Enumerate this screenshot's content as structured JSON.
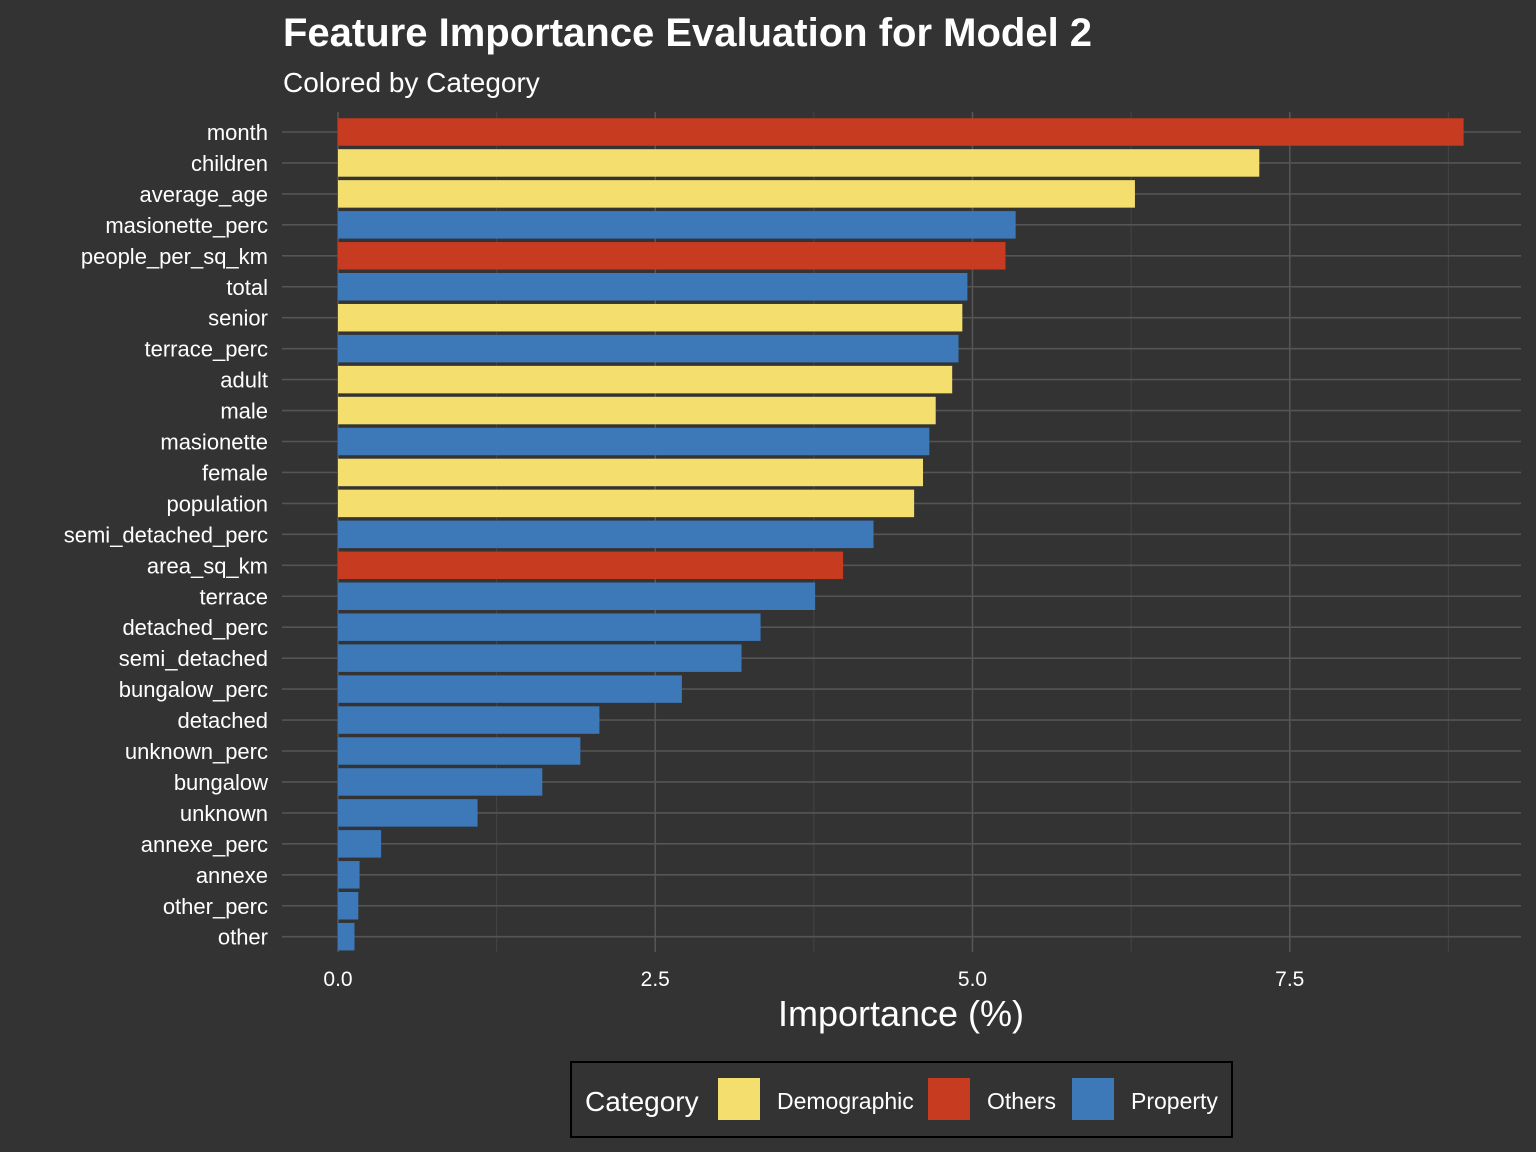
{
  "colors": {
    "background": "#333333",
    "grid_major": "#555555",
    "grid_minor": "#444444",
    "text": "#ffffff",
    "Demographic": "#F4DF6E",
    "Others": "#C73B20",
    "Property": "#3D78B8"
  },
  "chart_data": {
    "type": "bar",
    "orientation": "horizontal",
    "title": "Feature Importance Evaluation for Model 2",
    "subtitle": "Colored by Category",
    "xlabel": "Importance (%)",
    "ylabel": "",
    "xlim": [
      0,
      9
    ],
    "xticks": [
      "0.0",
      "2.5",
      "5.0",
      "7.5"
    ],
    "xtick_values": [
      0,
      2.5,
      5.0,
      7.5
    ],
    "grid": true,
    "legend_position": "bottom",
    "legend_title": "Category",
    "legend": [
      "Demographic",
      "Others",
      "Property"
    ],
    "categories": [
      "month",
      "children",
      "average_age",
      "masionette_perc",
      "people_per_sq_km",
      "total",
      "senior",
      "terrace_perc",
      "adult",
      "male",
      "masionette",
      "female",
      "population",
      "semi_detached_perc",
      "area_sq_km",
      "terrace",
      "detached_perc",
      "semi_detached",
      "bungalow_perc",
      "detached",
      "unknown_perc",
      "bungalow",
      "unknown",
      "annexe_perc",
      "annexe",
      "other_perc",
      "other"
    ],
    "values": [
      8.87,
      7.26,
      6.28,
      5.34,
      5.26,
      4.96,
      4.92,
      4.89,
      4.84,
      4.71,
      4.66,
      4.61,
      4.54,
      4.22,
      3.98,
      3.76,
      3.33,
      3.18,
      2.71,
      2.06,
      1.91,
      1.61,
      1.1,
      0.34,
      0.17,
      0.16,
      0.13
    ],
    "bar_categories": [
      "Others",
      "Demographic",
      "Demographic",
      "Property",
      "Others",
      "Property",
      "Demographic",
      "Property",
      "Demographic",
      "Demographic",
      "Property",
      "Demographic",
      "Demographic",
      "Property",
      "Others",
      "Property",
      "Property",
      "Property",
      "Property",
      "Property",
      "Property",
      "Property",
      "Property",
      "Property",
      "Property",
      "Property",
      "Property"
    ]
  }
}
